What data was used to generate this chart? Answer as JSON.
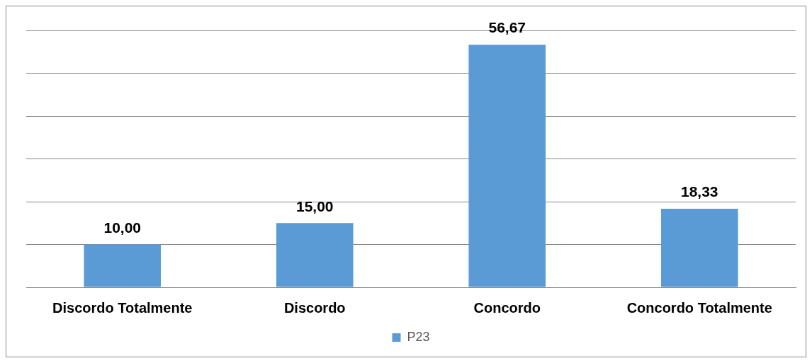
{
  "chart_data": {
    "type": "bar",
    "categories": [
      "Discordo Totalmente",
      "Discordo",
      "Concordo",
      "Concordo Totalmente"
    ],
    "series": [
      {
        "name": "P23",
        "color": "#5b9bd5",
        "values": [
          10,
          15,
          56.67,
          18.33
        ],
        "value_labels": [
          "10,00",
          "15,00",
          "56,67",
          "18,33"
        ]
      }
    ],
    "ylim": [
      0,
      60
    ],
    "yticks": [
      {
        "value": 0,
        "label": null
      },
      {
        "value": 10,
        "label": null
      },
      {
        "value": 20,
        "label": null
      },
      {
        "value": 30,
        "label": null
      },
      {
        "value": 40,
        "label": null
      },
      {
        "value": 50,
        "label": null
      },
      {
        "value": 60,
        "label": null
      }
    ],
    "tick_labels": "x",
    "grid": "y",
    "legend": "bottom"
  }
}
